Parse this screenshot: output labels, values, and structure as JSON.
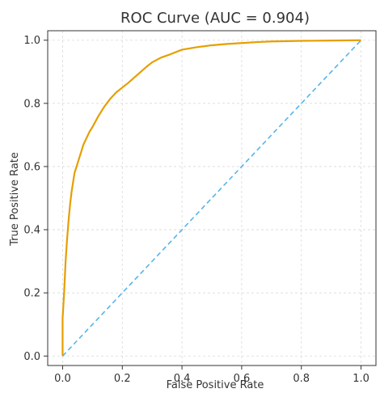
{
  "chart_data": {
    "type": "line",
    "title": "ROC Curve (AUC = 0.904)",
    "xlabel": "False Positive Rate",
    "ylabel": "True Positive Rate",
    "xlim": [
      -0.05,
      1.05
    ],
    "ylim": [
      -0.03,
      1.03
    ],
    "xticks": [
      "0.0",
      "0.2",
      "0.4",
      "0.6",
      "0.8",
      "1.0"
    ],
    "yticks": [
      "0.0",
      "0.2",
      "0.4",
      "0.6",
      "0.8",
      "1.0"
    ],
    "grid": true,
    "series": [
      {
        "color": "#E69F00",
        "style": "solid",
        "x": [
          0.0,
          0.0,
          0.005,
          0.01,
          0.015,
          0.02,
          0.025,
          0.03,
          0.035,
          0.04,
          0.05,
          0.06,
          0.07,
          0.08,
          0.09,
          0.1,
          0.12,
          0.14,
          0.16,
          0.18,
          0.2,
          0.22,
          0.25,
          0.28,
          0.3,
          0.33,
          0.36,
          0.4,
          0.45,
          0.5,
          0.55,
          0.6,
          0.65,
          0.7,
          0.8,
          0.9,
          1.0
        ],
        "y": [
          0.0,
          0.12,
          0.2,
          0.3,
          0.37,
          0.43,
          0.48,
          0.52,
          0.55,
          0.58,
          0.61,
          0.64,
          0.67,
          0.69,
          0.71,
          0.725,
          0.76,
          0.79,
          0.815,
          0.835,
          0.85,
          0.865,
          0.89,
          0.915,
          0.93,
          0.945,
          0.955,
          0.97,
          0.978,
          0.984,
          0.988,
          0.991,
          0.994,
          0.996,
          0.998,
          0.999,
          1.0
        ]
      },
      {
        "color": "#56B4E9",
        "style": "dashed",
        "x": [
          0,
          1
        ],
        "y": [
          0,
          1
        ]
      }
    ]
  }
}
